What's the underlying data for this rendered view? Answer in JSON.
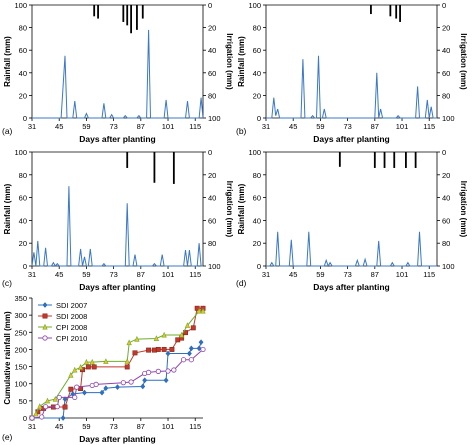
{
  "chart_data": [
    {
      "type": "line",
      "panel_label": "(a)",
      "xlabel": "Days after planting",
      "ylabel": "Rainfall (mm)",
      "y2label": "Irrigation (mm)",
      "xlim": [
        31,
        119
      ],
      "ylim": [
        0,
        100
      ],
      "y2lim": [
        100,
        0
      ],
      "xticks": [
        31,
        45,
        59,
        73,
        87,
        101,
        115
      ],
      "yticks": [
        0,
        20,
        40,
        60,
        80,
        100
      ],
      "y2ticks": [
        0,
        20,
        40,
        60,
        80,
        100
      ],
      "rain_color": "#3a78c8",
      "series": [
        {
          "x": [
            31,
            46,
            48,
            49,
            50,
            51,
            52,
            53,
            54,
            55,
            56,
            57,
            58,
            59,
            60,
            61,
            62,
            63,
            64,
            65,
            66,
            67,
            68,
            69,
            70,
            71,
            72,
            73,
            74,
            75,
            76,
            77,
            78,
            79,
            80,
            81,
            82,
            83,
            84,
            85,
            86,
            87,
            88,
            89,
            90,
            91,
            92,
            93,
            94,
            95,
            96,
            97,
            98,
            99,
            100,
            101,
            102,
            103,
            104,
            105,
            106,
            107,
            108,
            109,
            110,
            111,
            112,
            113,
            114,
            115,
            116,
            117,
            118,
            119
          ],
          "y": [
            0,
            0,
            55,
            0,
            0,
            0,
            0,
            15,
            0,
            0,
            0,
            0,
            0,
            4,
            0,
            0,
            0,
            0,
            0,
            0,
            0,
            0,
            13,
            0,
            0,
            0,
            3,
            0,
            0,
            0,
            0,
            0,
            0,
            2,
            0,
            0,
            0,
            0,
            0,
            0,
            2,
            0,
            0,
            0,
            0,
            78,
            0,
            0,
            0,
            0,
            0,
            0,
            0,
            0,
            16,
            0,
            0,
            0,
            0,
            0,
            0,
            0,
            0,
            0,
            0,
            15,
            0,
            0,
            0,
            0,
            0,
            0,
            18,
            0
          ]
        }
      ],
      "irrigation": [
        {
          "day": 63,
          "mm": 10
        },
        {
          "day": 65,
          "mm": 12
        },
        {
          "day": 78,
          "mm": 15
        },
        {
          "day": 80,
          "mm": 18
        },
        {
          "day": 82,
          "mm": 25
        },
        {
          "day": 85,
          "mm": 22
        },
        {
          "day": 88,
          "mm": 12
        }
      ]
    },
    {
      "type": "line",
      "panel_label": "(b)",
      "xlabel": "Days after planting",
      "ylabel": "Rainfall (mm)",
      "y2label": "Irrigation (mm)",
      "xlim": [
        31,
        119
      ],
      "ylim": [
        0,
        100
      ],
      "y2lim": [
        100,
        0
      ],
      "xticks": [
        31,
        45,
        59,
        73,
        87,
        101,
        115
      ],
      "yticks": [
        0,
        20,
        40,
        60,
        80,
        100
      ],
      "y2ticks": [
        0,
        20,
        40,
        60,
        80,
        100
      ],
      "rain_color": "#3a78c8",
      "series": [
        {
          "x": [
            31,
            34,
            35,
            36,
            37,
            38,
            39,
            40,
            49,
            50,
            51,
            52,
            53,
            54,
            55,
            56,
            57,
            58,
            59,
            60,
            61,
            62,
            63,
            64,
            71,
            72,
            73,
            74,
            75,
            76,
            77,
            78,
            79,
            80,
            81,
            84,
            85,
            86,
            87,
            88,
            89,
            90,
            91,
            95,
            96,
            97,
            98,
            99,
            100,
            101,
            102,
            103,
            104,
            105,
            106,
            107,
            108,
            109,
            110,
            111,
            112,
            113,
            114,
            115,
            116,
            117,
            118,
            119
          ],
          "y": [
            0,
            0,
            18,
            2,
            8,
            0,
            0,
            0,
            0,
            52,
            0,
            0,
            0,
            0,
            2,
            0,
            0,
            55,
            0,
            0,
            8,
            0,
            0,
            0,
            0,
            0,
            0,
            0,
            0,
            0,
            0,
            0,
            0,
            0,
            0,
            0,
            0,
            0,
            0,
            40,
            0,
            8,
            0,
            0,
            0,
            0,
            0,
            2,
            0,
            0,
            0,
            0,
            0,
            0,
            0,
            0,
            0,
            28,
            0,
            0,
            0,
            0,
            16,
            0,
            10,
            0,
            0,
            0
          ]
        }
      ],
      "irrigation": [
        {
          "day": 85,
          "mm": 8
        },
        {
          "day": 95,
          "mm": 10
        },
        {
          "day": 98,
          "mm": 12
        },
        {
          "day": 100,
          "mm": 15
        }
      ]
    },
    {
      "type": "line",
      "panel_label": "(c)",
      "xlabel": "Days after planting",
      "ylabel": "Rainfall (mm)",
      "y2label": "Irrigation (mm)",
      "xlim": [
        31,
        119
      ],
      "ylim": [
        0,
        100
      ],
      "y2lim": [
        100,
        0
      ],
      "xticks": [
        31,
        45,
        59,
        73,
        87,
        101,
        115
      ],
      "yticks": [
        0,
        20,
        40,
        60,
        80,
        100
      ],
      "y2ticks": [
        0,
        20,
        40,
        60,
        80,
        100
      ],
      "rain_color": "#3a78c8",
      "series": [
        {
          "x": [
            31,
            32,
            33,
            34,
            35,
            36,
            37,
            38,
            39,
            40,
            41,
            42,
            43,
            44,
            45,
            46,
            47,
            48,
            49,
            50,
            51,
            52,
            53,
            54,
            55,
            56,
            57,
            58,
            59,
            60,
            61,
            62,
            63,
            64,
            65,
            66,
            67,
            68,
            69,
            70,
            71,
            72,
            73,
            74,
            75,
            76,
            77,
            78,
            79,
            80,
            81,
            82,
            83,
            84,
            85,
            86,
            87,
            88,
            89,
            90,
            91,
            92,
            93,
            94,
            95,
            96,
            97,
            98,
            99,
            100,
            101,
            102,
            103,
            104,
            105,
            106,
            107,
            108,
            109,
            110,
            111,
            112,
            113,
            114,
            115,
            116,
            117,
            118,
            119
          ],
          "y": [
            0,
            12,
            0,
            22,
            0,
            0,
            0,
            16,
            0,
            0,
            0,
            3,
            0,
            2,
            0,
            0,
            0,
            0,
            0,
            70,
            0,
            0,
            0,
            0,
            0,
            15,
            0,
            8,
            0,
            0,
            15,
            0,
            0,
            0,
            0,
            0,
            0,
            2,
            0,
            0,
            0,
            0,
            0,
            0,
            0,
            0,
            0,
            0,
            0,
            55,
            0,
            0,
            0,
            10,
            0,
            0,
            0,
            0,
            0,
            0,
            0,
            0,
            0,
            2,
            0,
            0,
            0,
            10,
            0,
            0,
            0,
            0,
            0,
            0,
            0,
            0,
            0,
            0,
            0,
            14,
            0,
            14,
            0,
            0,
            0,
            0,
            20,
            0,
            0
          ]
        }
      ],
      "irrigation": [
        {
          "day": 80,
          "mm": 14
        },
        {
          "day": 94,
          "mm": 27
        },
        {
          "day": 104,
          "mm": 28
        }
      ]
    },
    {
      "type": "line",
      "panel_label": "(d)",
      "xlabel": "Days after planting",
      "ylabel": "Rainfall (mm)",
      "y2label": "Irrigation (mm)",
      "xlim": [
        31,
        119
      ],
      "ylim": [
        0,
        100
      ],
      "y2lim": [
        100,
        0
      ],
      "xticks": [
        31,
        45,
        59,
        73,
        87,
        101,
        115
      ],
      "yticks": [
        0,
        20,
        40,
        60,
        80,
        100
      ],
      "y2ticks": [
        0,
        20,
        40,
        60,
        80,
        100
      ],
      "rain_color": "#3a78c8",
      "series": [
        {
          "x": [
            31,
            33,
            34,
            35,
            36,
            37,
            38,
            39,
            40,
            41,
            42,
            43,
            44,
            45,
            46,
            47,
            48,
            49,
            50,
            51,
            52,
            53,
            54,
            55,
            56,
            57,
            58,
            59,
            60,
            61,
            62,
            63,
            64,
            65,
            66,
            67,
            68,
            69,
            70,
            71,
            72,
            73,
            74,
            75,
            76,
            77,
            78,
            79,
            80,
            81,
            82,
            83,
            84,
            85,
            86,
            87,
            88,
            89,
            90,
            91,
            92,
            93,
            94,
            95,
            96,
            97,
            98,
            99,
            100,
            101,
            102,
            103,
            104,
            105,
            106,
            107,
            108,
            109,
            110,
            111,
            112,
            113,
            114,
            115,
            116,
            117,
            118,
            119
          ],
          "y": [
            0,
            0,
            3,
            0,
            0,
            30,
            0,
            0,
            0,
            0,
            0,
            0,
            23,
            0,
            0,
            0,
            0,
            0,
            0,
            0,
            0,
            30,
            0,
            0,
            0,
            0,
            0,
            0,
            0,
            0,
            5,
            0,
            3,
            0,
            0,
            0,
            0,
            0,
            0,
            0,
            0,
            0,
            0,
            0,
            0,
            0,
            5,
            0,
            0,
            0,
            6,
            0,
            0,
            0,
            0,
            0,
            0,
            22,
            0,
            0,
            0,
            0,
            0,
            0,
            3,
            0,
            0,
            0,
            0,
            0,
            0,
            0,
            3,
            0,
            0,
            0,
            0,
            0,
            30,
            0,
            0,
            0,
            0,
            0,
            0,
            0,
            0,
            0
          ]
        }
      ],
      "irrigation": [
        {
          "day": 69,
          "mm": 13
        },
        {
          "day": 87,
          "mm": 14
        },
        {
          "day": 92,
          "mm": 14
        },
        {
          "day": 97,
          "mm": 14
        },
        {
          "day": 103,
          "mm": 14
        },
        {
          "day": 108,
          "mm": 14
        }
      ]
    },
    {
      "type": "line",
      "panel_label": "(e)",
      "xlabel": "Days after planting",
      "ylabel": "Cumulative rainfall (mm)",
      "xlim": [
        31,
        119
      ],
      "ylim": [
        0,
        350
      ],
      "xticks": [
        31,
        45,
        59,
        73,
        87,
        101,
        115
      ],
      "yticks": [
        0,
        50,
        100,
        150,
        200,
        250,
        300,
        350
      ],
      "legend_position": "top-left",
      "series": [
        {
          "name": "SDI 2007",
          "color": "#2e6fc0",
          "marker": "diamond",
          "x": [
            31,
            47,
            48,
            52,
            58,
            67,
            69,
            75,
            88,
            89,
            100,
            101,
            112,
            113,
            117,
            118
          ],
          "y": [
            0,
            0,
            55,
            70,
            74,
            74,
            87,
            90,
            92,
            110,
            110,
            188,
            188,
            203,
            203,
            221
          ]
        },
        {
          "name": "SDI 2008",
          "color": "#c0392b",
          "marker": "square",
          "x": [
            31,
            34,
            37,
            42,
            48,
            51,
            56,
            57,
            60,
            63,
            80,
            84,
            91,
            94,
            96,
            99,
            103,
            106,
            108,
            110,
            114,
            116,
            119
          ],
          "y": [
            0,
            18,
            28,
            32,
            32,
            84,
            86,
            141,
            149,
            149,
            149,
            190,
            198,
            198,
            200,
            200,
            200,
            228,
            233,
            249,
            263,
            320,
            320
          ]
        },
        {
          "name": "CPI 2008",
          "color": "#6cae2e",
          "marker": "triangle",
          "x": [
            31,
            33,
            35,
            39,
            43,
            51,
            53,
            56,
            59,
            62,
            69,
            80,
            81,
            85,
            95,
            99,
            108,
            111,
            117,
            119
          ],
          "y": [
            0,
            12,
            34,
            50,
            55,
            125,
            140,
            148,
            163,
            163,
            165,
            165,
            220,
            230,
            232,
            242,
            242,
            270,
            312,
            312
          ]
        },
        {
          "name": "CPI 2010",
          "color": "#8e44ad",
          "marker": "circle",
          "x": [
            31,
            36,
            38,
            44,
            45,
            53,
            54,
            62,
            64,
            78,
            82,
            89,
            91,
            96,
            101,
            104,
            109,
            113,
            119
          ],
          "y": [
            0,
            3,
            33,
            33,
            60,
            60,
            90,
            95,
            98,
            103,
            105,
            130,
            133,
            136,
            137,
            140,
            170,
            170,
            200
          ]
        }
      ]
    }
  ]
}
